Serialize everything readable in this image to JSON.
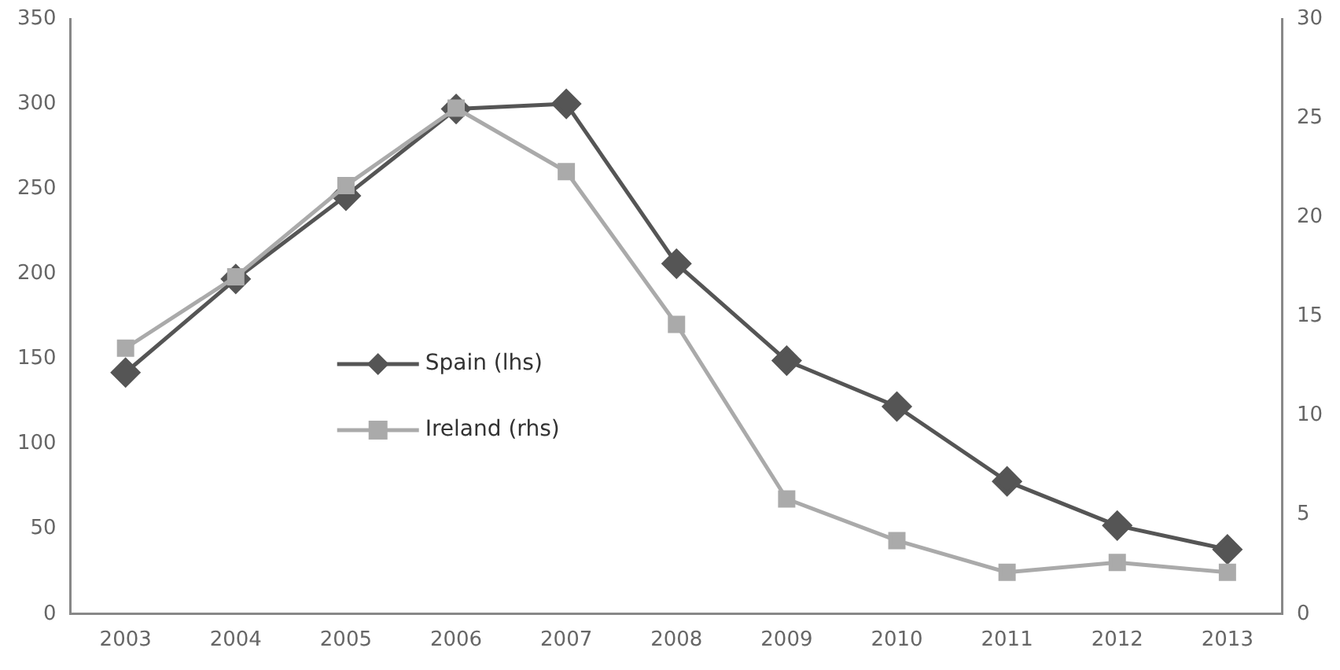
{
  "chart_data": {
    "type": "line",
    "categories": [
      "2003",
      "2004",
      "2005",
      "2006",
      "2007",
      "2008",
      "2009",
      "2010",
      "2011",
      "2012",
      "2013"
    ],
    "series": [
      {
        "name": "Spain (lhs)",
        "color": "#555555",
        "marker": "diamond",
        "values": [
          142,
          197,
          246,
          297,
          300,
          206,
          149,
          122,
          78,
          52,
          38
        ]
      },
      {
        "name": "Ireland (rhs)",
        "color": "#aaaaaa",
        "marker": "square",
        "axis": "y2",
        "values": [
          13.4,
          17,
          21.6,
          25.5,
          22.3,
          14.6,
          5.8,
          3.7,
          2.1,
          2.6,
          2.1
        ]
      }
    ],
    "ylim": [
      0,
      350
    ],
    "yticks": [
      0,
      50,
      100,
      150,
      200,
      250,
      300,
      350
    ],
    "y2lim": [
      0,
      30
    ],
    "y2ticks": [
      0,
      5,
      10,
      15,
      20,
      25,
      30
    ],
    "grid": false,
    "legend": "center left"
  }
}
